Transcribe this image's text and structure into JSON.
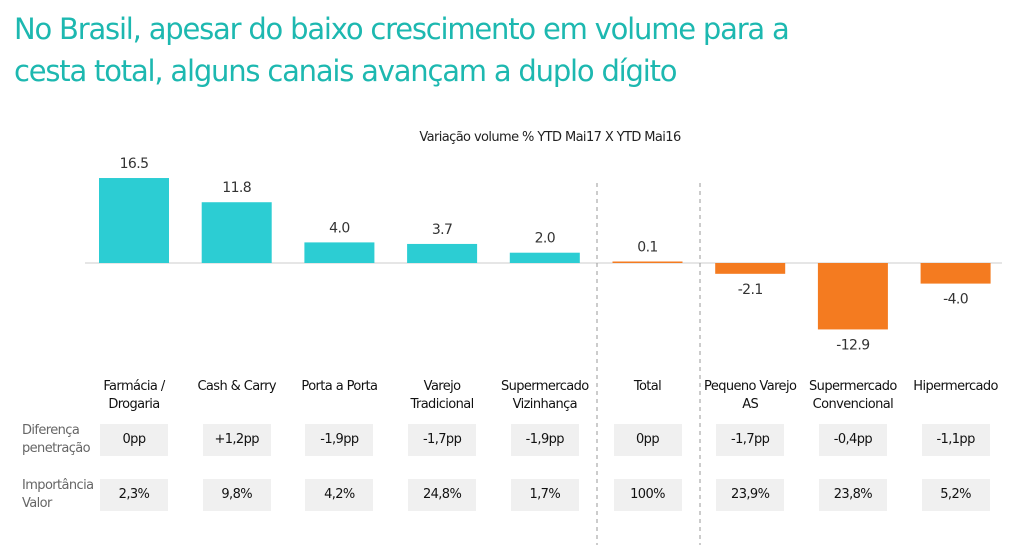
{
  "chart_data": {
    "type": "bar",
    "title": "No Brasil, apesar do baixo crescimento em volume para a cesta total, alguns canais avançam a duplo dígito",
    "subtitle": "Variação volume % YTD Mai17  X  YTD Mai16",
    "categories": [
      "Farmácia / Drogaria",
      "Cash & Carry",
      "Porta a Porta",
      "Varejo Tradicional",
      "Supermercado Vizinhança",
      "Total",
      "Pequeno Varejo AS",
      "Supermercado Convencional",
      "Hipermercado"
    ],
    "values": [
      16.5,
      11.8,
      4.0,
      3.7,
      2.0,
      0.1,
      -2.1,
      -12.9,
      -4.0
    ],
    "value_labels": [
      "16.5",
      "11.8",
      "4.0",
      "3.7",
      "2.0",
      "0.1",
      "-2.1",
      "-12.9",
      "-4.0"
    ],
    "colors": [
      "#2ccdd3",
      "#2ccdd3",
      "#2ccdd3",
      "#2ccdd3",
      "#2ccdd3",
      "#f47b20",
      "#f47b20",
      "#f47b20",
      "#f47b20"
    ],
    "rows": [
      {
        "label": "Diferença penetração",
        "values": [
          "0pp",
          "+1,2pp",
          "-1,9pp",
          "-1,7pp",
          "-1,9pp",
          "0pp",
          "-1,7pp",
          "-0,4pp",
          "-1,1pp"
        ]
      },
      {
        "label": "Importância Valor",
        "values": [
          "2,3%",
          "9,8%",
          "4,2%",
          "24,8%",
          "1,7%",
          "100%",
          "23,9%",
          "23,8%",
          "5,2%"
        ]
      }
    ]
  }
}
